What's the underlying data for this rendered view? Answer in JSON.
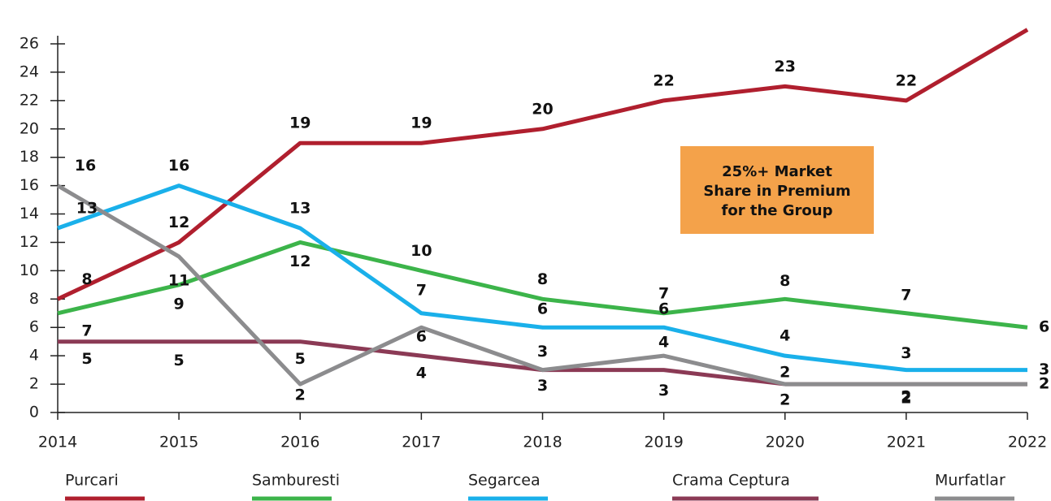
{
  "chart_data": {
    "type": "line",
    "x": [
      2014,
      2015,
      2016,
      2017,
      2018,
      2019,
      2020,
      2021,
      2022
    ],
    "xlim": [
      2014,
      2022
    ],
    "xticks": [
      2014,
      2015,
      2016,
      2017,
      2018,
      2019,
      2020,
      2021,
      2022
    ],
    "ylim": [
      0,
      26
    ],
    "yticks": [
      0,
      2,
      4,
      6,
      8,
      10,
      12,
      14,
      16,
      18,
      20,
      22,
      24,
      26
    ],
    "annotation": [
      "25%+ Market",
      "Share in Premium",
      "for the Group"
    ],
    "series": [
      {
        "name": "Purcari",
        "color": "#b01f2e",
        "values": [
          8,
          12,
          19,
          19,
          20,
          22,
          23,
          22,
          27
        ],
        "labeled": [
          true,
          true,
          true,
          true,
          true,
          true,
          true,
          true,
          false
        ]
      },
      {
        "name": "Samburesti",
        "color": "#3cb44a",
        "values": [
          7,
          9,
          12,
          10,
          8,
          7,
          8,
          7,
          6
        ]
      },
      {
        "name": "Segarcea",
        "color": "#1ab0ea",
        "values": [
          13,
          16,
          13,
          7,
          6,
          6,
          4,
          3,
          3
        ]
      },
      {
        "name": "Crama Ceptura",
        "color": "#8b3a55",
        "values": [
          5,
          5,
          5,
          4,
          3,
          3,
          2,
          2,
          2
        ]
      },
      {
        "name": "Murfatlar",
        "color": "#8c8c8e",
        "values": [
          16,
          11,
          2,
          6,
          3,
          4,
          2,
          2,
          2
        ]
      }
    ]
  }
}
